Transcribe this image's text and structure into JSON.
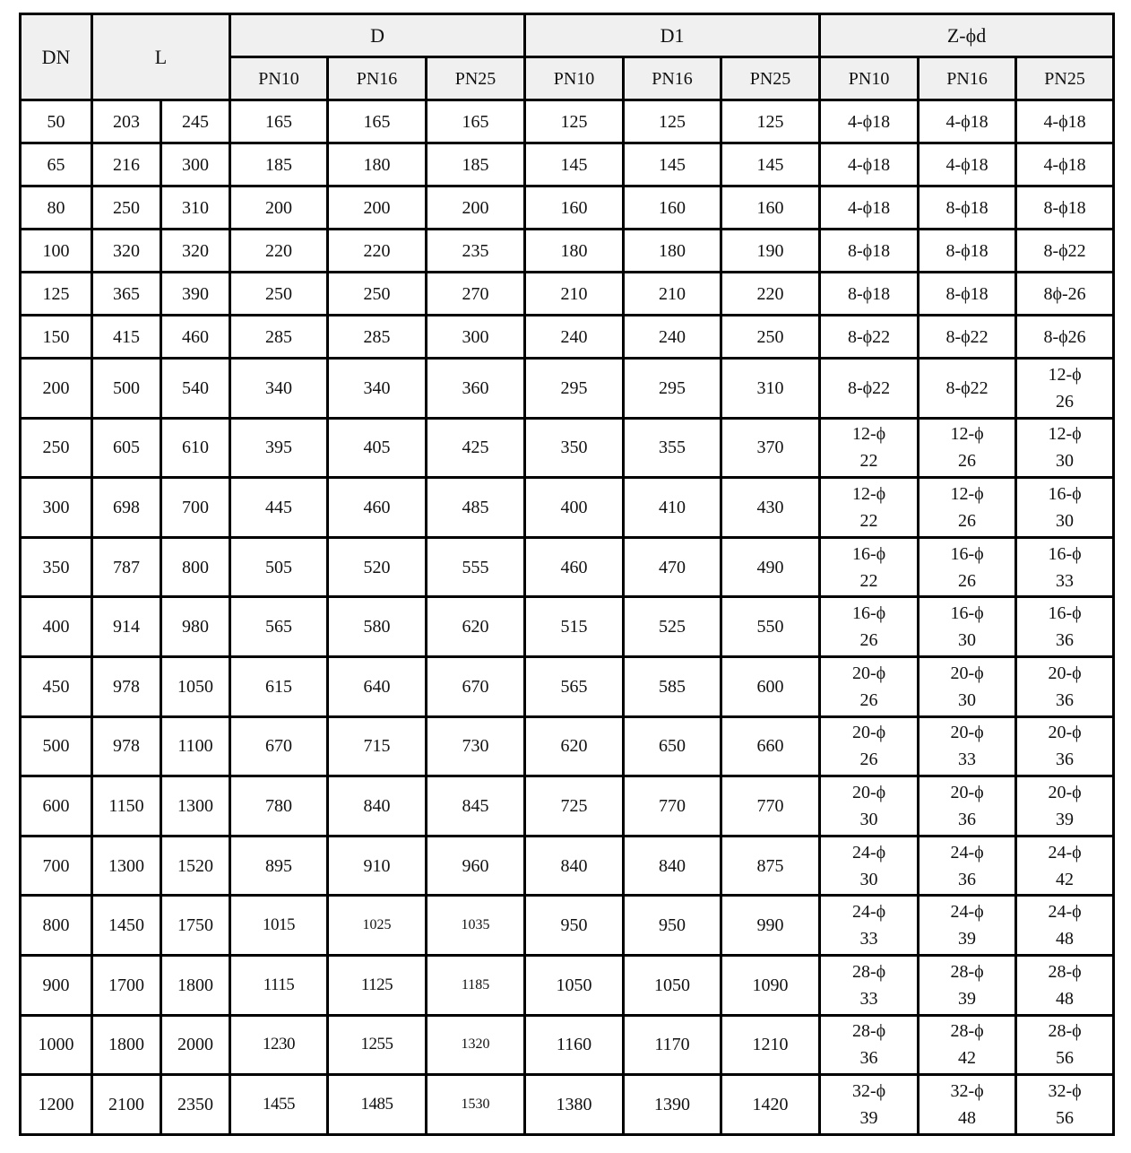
{
  "header": {
    "dn": "DN",
    "l": "L",
    "d": "D",
    "d1": "D1",
    "z": "Z-ϕd",
    "sub": [
      "PN10",
      "PN16",
      "PN25",
      "PN10",
      "PN16",
      "PN25",
      "PN10",
      "PN16",
      "PN25"
    ]
  },
  "rows": [
    [
      "50",
      "203",
      "245",
      "165",
      "165",
      "165",
      "125",
      "125",
      "125",
      "4-ϕ18",
      "4-ϕ18",
      "4-ϕ18"
    ],
    [
      "65",
      "216",
      "300",
      "185",
      "180",
      "185",
      "145",
      "145",
      "145",
      "4-ϕ18",
      "4-ϕ18",
      "4-ϕ18"
    ],
    [
      "80",
      "250",
      "310",
      "200",
      "200",
      "200",
      "160",
      "160",
      "160",
      "4-ϕ18",
      "8-ϕ18",
      "8-ϕ18"
    ],
    [
      "100",
      "320",
      "320",
      "220",
      "220",
      "235",
      "180",
      "180",
      "190",
      "8-ϕ18",
      "8-ϕ18",
      "8-ϕ22"
    ],
    [
      "125",
      "365",
      "390",
      "250",
      "250",
      "270",
      "210",
      "210",
      "220",
      "8-ϕ18",
      "8-ϕ18",
      "8ϕ-26"
    ],
    [
      "150",
      "415",
      "460",
      "285",
      "285",
      "300",
      "240",
      "240",
      "250",
      "8-ϕ22",
      "8-ϕ22",
      "8-ϕ26"
    ],
    [
      "200",
      "500",
      "540",
      "340",
      "340",
      "360",
      "295",
      "295",
      "310",
      "8-ϕ22",
      "8-ϕ22",
      "12-ϕ\n26"
    ],
    [
      "250",
      "605",
      "610",
      "395",
      "405",
      "425",
      "350",
      "355",
      "370",
      "12-ϕ\n22",
      "12-ϕ\n26",
      "12-ϕ\n30"
    ],
    [
      "300",
      "698",
      "700",
      "445",
      "460",
      "485",
      "400",
      "410",
      "430",
      "12-ϕ\n22",
      "12-ϕ\n26",
      "16-ϕ\n30"
    ],
    [
      "350",
      "787",
      "800",
      "505",
      "520",
      "555",
      "460",
      "470",
      "490",
      "16-ϕ\n22",
      "16-ϕ\n26",
      "16-ϕ\n33"
    ],
    [
      "400",
      "914",
      "980",
      "565",
      "580",
      "620",
      "515",
      "525",
      "550",
      "16-ϕ\n26",
      "16-ϕ\n30",
      "16-ϕ\n36"
    ],
    [
      "450",
      "978",
      "1050",
      "615",
      "640",
      "670",
      "565",
      "585",
      "600",
      "20-ϕ\n26",
      "20-ϕ\n30",
      "20-ϕ\n36"
    ],
    [
      "500",
      "978",
      "1100",
      "670",
      "715",
      "730",
      "620",
      "650",
      "660",
      "20-ϕ\n26",
      "20-ϕ\n33",
      "20-ϕ\n36"
    ],
    [
      "600",
      "1150",
      "1300",
      "780",
      "840",
      "845",
      "725",
      "770",
      "770",
      "20-ϕ\n30",
      "20-ϕ\n36",
      "20-ϕ\n39"
    ],
    [
      "700",
      "1300",
      "1520",
      "895",
      "910",
      "960",
      "840",
      "840",
      "875",
      "24-ϕ\n30",
      "24-ϕ\n36",
      "24-ϕ\n42"
    ],
    [
      "800",
      "1450",
      "1750",
      "1015",
      "1025",
      "1035",
      "950",
      "950",
      "990",
      "24-ϕ\n33",
      "24-ϕ\n39",
      "24-ϕ\n48"
    ],
    [
      "900",
      "1700",
      "1800",
      "1115",
      "1125",
      "1185",
      "1050",
      "1050",
      "1090",
      "28-ϕ\n33",
      "28-ϕ\n39",
      "28-ϕ\n48"
    ],
    [
      "1000",
      "1800",
      "2000",
      "1230",
      "1255",
      "1320",
      "1160",
      "1170",
      "1210",
      "28-ϕ\n36",
      "28-ϕ\n42",
      "28-ϕ\n56"
    ],
    [
      "1200",
      "2100",
      "2350",
      "1455",
      "1485",
      "1530",
      "1380",
      "1390",
      "1420",
      "32-ϕ\n39",
      "32-ϕ\n48",
      "32-ϕ\n56"
    ]
  ]
}
